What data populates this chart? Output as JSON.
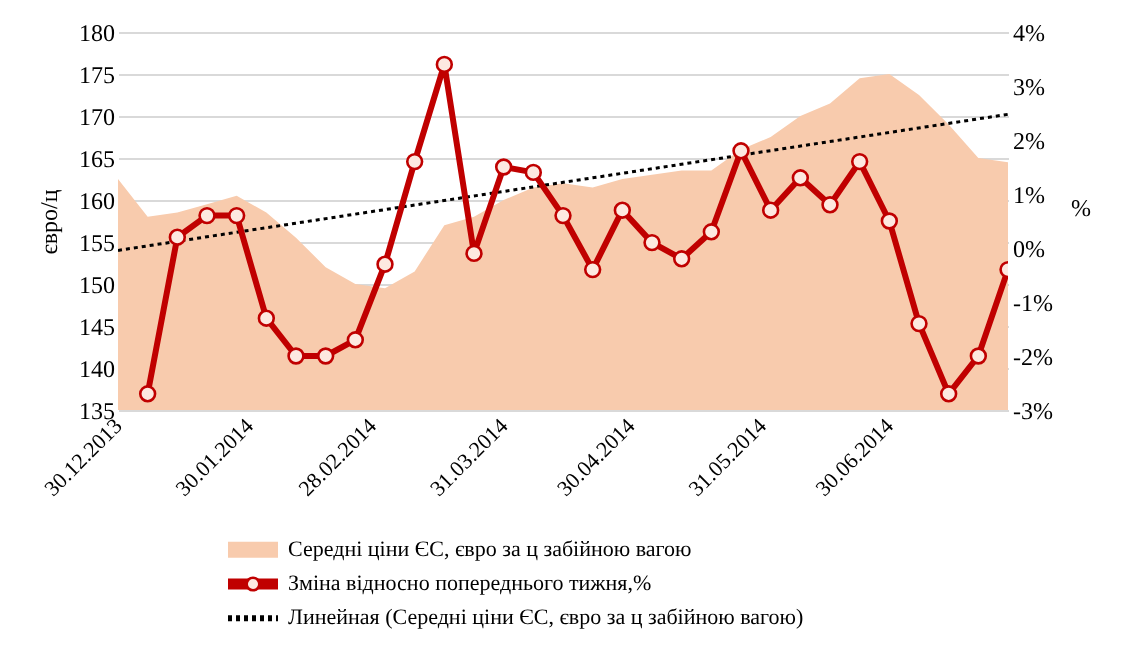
{
  "chart_data": {
    "type": "area",
    "ylabel": "євро/ц",
    "y2label": "%",
    "x": [
      "2013-12-30",
      "2014-01-06",
      "2014-01-13",
      "2014-01-20",
      "2014-01-27",
      "2014-02-03",
      "2014-02-10",
      "2014-02-17",
      "2014-02-24",
      "2014-03-03",
      "2014-03-10",
      "2014-03-17",
      "2014-03-24",
      "2014-03-31",
      "2014-04-07",
      "2014-04-14",
      "2014-04-21",
      "2014-04-28",
      "2014-05-05",
      "2014-05-12",
      "2014-05-19",
      "2014-05-26",
      "2014-06-02",
      "2014-06-09",
      "2014-06-16",
      "2014-06-23",
      "2014-06-30",
      "2014-07-07",
      "2014-07-14",
      "2014-07-21",
      "2014-07-28"
    ],
    "series": [
      {
        "name": "Середні ціни ЄС, євро за ц забійною  вагою",
        "type": "area",
        "color": "#f8cbad",
        "values": [
          162.5,
          158,
          158.5,
          159.5,
          160.5,
          158.5,
          155.5,
          152,
          150,
          149.5,
          151.5,
          157,
          158,
          160,
          161.5,
          162,
          161.5,
          162.5,
          163,
          163.5,
          163.5,
          166,
          167.5,
          170,
          171.5,
          174.5,
          175,
          172.5,
          169,
          165,
          164.5
        ]
      },
      {
        "name": "Зміна  відносно  попереднього тижня,%",
        "type": "line",
        "axis": "y2",
        "color": "#c00000",
        "marker": "circle",
        "values": [
          null,
          -2.7,
          0.2,
          0.6,
          0.6,
          -1.3,
          -2.0,
          -2.0,
          -1.7,
          -0.3,
          1.6,
          3.4,
          -0.1,
          1.5,
          1.4,
          0.6,
          -0.4,
          0.7,
          0.1,
          -0.2,
          0.3,
          1.8,
          0.7,
          1.3,
          0.8,
          1.6,
          0.5,
          -1.4,
          -2.7,
          -2.0,
          -0.4
        ]
      },
      {
        "name": "Линейная  (Середні ціни ЄС, євро за ц забійною  вагою)",
        "type": "line",
        "color": "#000000",
        "line_style": "dotted",
        "x": [
          "2013-12-30",
          "2014-07-28"
        ],
        "values": [
          154,
          170.2
        ]
      }
    ],
    "xlim": [
      "2013-12-30",
      "2014-07-28"
    ],
    "xticks": [
      {
        "value": "2013-12-30",
        "label": "30.12.2013"
      },
      {
        "value": "2014-01-30",
        "label": "30.01.2014"
      },
      {
        "value": "2014-02-28",
        "label": "28.02.2014"
      },
      {
        "value": "2014-03-31",
        "label": "31.03.2014"
      },
      {
        "value": "2014-04-30",
        "label": "30.04.2014"
      },
      {
        "value": "2014-05-31",
        "label": "31.05.2014"
      },
      {
        "value": "2014-06-30",
        "label": "30.06.2014"
      }
    ],
    "ylim": [
      135,
      180
    ],
    "yticks": [
      135,
      140,
      145,
      150,
      155,
      160,
      165,
      170,
      175,
      180
    ],
    "y2lim": [
      -3,
      4
    ],
    "y2ticks": [
      {
        "value": -3,
        "label": "-3%"
      },
      {
        "value": -2,
        "label": "-2%"
      },
      {
        "value": -1,
        "label": "-1%"
      },
      {
        "value": 0,
        "label": "0%"
      },
      {
        "value": 1,
        "label": "1%"
      },
      {
        "value": 2,
        "label": "2%"
      },
      {
        "value": 3,
        "label": "3%"
      },
      {
        "value": 4,
        "label": "4%"
      }
    ],
    "grid": "y",
    "legend": "bottom"
  }
}
